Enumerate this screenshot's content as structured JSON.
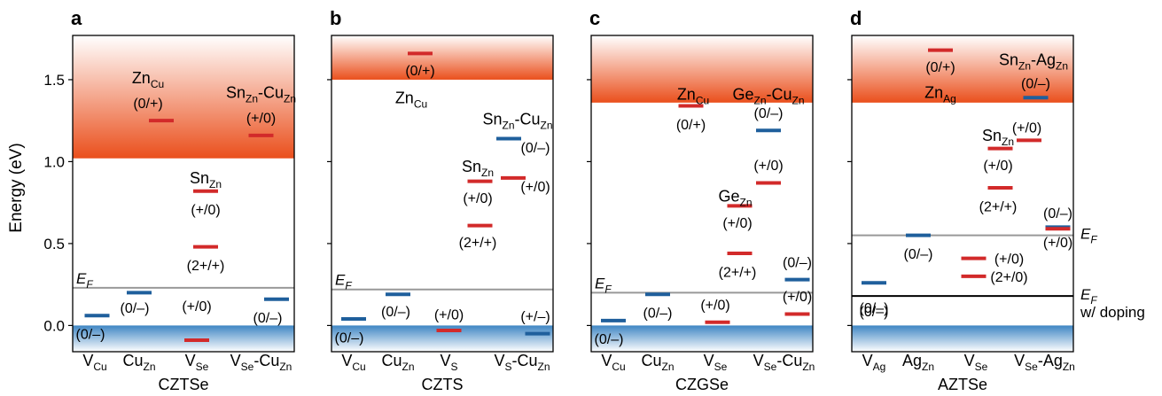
{
  "chart_data": {
    "type": "band-diagram",
    "ylabel": "Energy (eV)",
    "ylim": [
      -0.16,
      1.77
    ],
    "yticks": [
      0.0,
      0.5,
      1.0,
      1.5
    ],
    "ytick_labels": [
      "0.0",
      "0.5",
      "1.0",
      "1.5"
    ],
    "colors": {
      "acceptor": "#1f5f9c",
      "donor": "#d22a2a",
      "fermi": "#999999",
      "doped_fermi": "#000000",
      "cb": "#ec5a25",
      "vb": "#4a8cc6"
    },
    "panels": [
      {
        "letter": "a",
        "material": "CZTSe",
        "cbm": 1.02,
        "x_labels": [
          {
            "base": "V",
            "sub": "Cu",
            "pos": 0.1
          },
          {
            "base": "Cu",
            "sub": "Zn",
            "pos": 0.3
          },
          {
            "base": "V",
            "sub": "Se",
            "pos": 0.56
          },
          {
            "base": "V",
            "sub": "Se",
            "mid": "-Cu",
            "sub2": "Zn",
            "pos": 0.85
          }
        ],
        "fermi_levels": [
          {
            "energy": 0.23,
            "label": "E",
            "sub": "F",
            "style": "gray",
            "label_pos": "left-above"
          }
        ],
        "levels": [
          {
            "energy": 0.06,
            "x": 0.11,
            "type": "acceptor",
            "label": "(0/–)",
            "lx": 0.08,
            "ly": -0.05
          },
          {
            "energy": 0.2,
            "x": 0.3,
            "type": "acceptor",
            "label": "(0/–)",
            "lx": 0.28,
            "ly": 0.11
          },
          {
            "energy": -0.09,
            "x": 0.56,
            "type": "donor",
            "label": "(+/0)",
            "lx": 0.56,
            "ly": 0.12
          },
          {
            "energy": 0.48,
            "x": 0.6,
            "type": "donor",
            "label": "(2+/+)",
            "lx": 0.6,
            "ly": 0.37
          },
          {
            "energy": 0.82,
            "x": 0.6,
            "type": "donor",
            "label": "(+/0)",
            "lx": 0.6,
            "ly": 0.71
          },
          {
            "energy": 1.25,
            "x": 0.4,
            "type": "donor",
            "label": "(0/+)",
            "lx": 0.34,
            "ly": 1.36
          },
          {
            "energy": 1.16,
            "x": 0.85,
            "type": "donor",
            "label": "(+/0)",
            "lx": 0.85,
            "ly": 1.27
          },
          {
            "energy": 0.16,
            "x": 0.92,
            "type": "acceptor",
            "label": "(0/–)",
            "lx": 0.88,
            "ly": 0.05
          }
        ],
        "defects": [
          {
            "base": "Zn",
            "sub": "Cu",
            "x": 0.34,
            "y": 1.51
          },
          {
            "base": "Sn",
            "sub": "Zn",
            "mid": "-Cu",
            "sub2": "Zn",
            "x": 0.85,
            "y": 1.42
          },
          {
            "base": "Sn",
            "sub": "Zn",
            "x": 0.6,
            "y": 0.9
          }
        ]
      },
      {
        "letter": "b",
        "material": "CZTS",
        "cbm": 1.5,
        "x_labels": [
          {
            "base": "V",
            "sub": "Cu",
            "pos": 0.1
          },
          {
            "base": "Cu",
            "sub": "Zn",
            "pos": 0.3
          },
          {
            "base": "V",
            "sub": "S",
            "pos": 0.53
          },
          {
            "base": "V",
            "sub": "S",
            "mid": "-Cu",
            "sub2": "Zn",
            "pos": 0.86
          }
        ],
        "fermi_levels": [
          {
            "energy": 0.22,
            "label": "E",
            "sub": "F",
            "style": "gray",
            "label_pos": "left-above"
          }
        ],
        "levels": [
          {
            "energy": 0.04,
            "x": 0.1,
            "type": "acceptor",
            "label": "(0/–)",
            "lx": 0.08,
            "ly": -0.07
          },
          {
            "energy": 0.19,
            "x": 0.3,
            "type": "acceptor",
            "label": "(0/–)",
            "lx": 0.29,
            "ly": 0.09
          },
          {
            "energy": -0.03,
            "x": 0.53,
            "type": "donor",
            "label": "(+/0)",
            "lx": 0.53,
            "ly": 0.07
          },
          {
            "energy": -0.05,
            "x": 0.93,
            "type": "acceptor",
            "label": "(+/–)",
            "lx": 0.92,
            "ly": 0.06
          },
          {
            "energy": 0.61,
            "x": 0.67,
            "type": "donor",
            "label": "(2+/+)",
            "lx": 0.66,
            "ly": 0.51
          },
          {
            "energy": 0.88,
            "x": 0.67,
            "type": "donor",
            "label": "(+/0)",
            "lx": 0.66,
            "ly": 0.78
          },
          {
            "energy": 0.9,
            "x": 0.82,
            "type": "donor",
            "label": "(+/0)",
            "lx": 0.92,
            "ly": 0.85
          },
          {
            "energy": 1.14,
            "x": 0.8,
            "type": "acceptor",
            "label": "(0/–)",
            "lx": 0.92,
            "ly": 1.09
          },
          {
            "energy": 1.66,
            "x": 0.4,
            "type": "donor",
            "label": "(0/+)",
            "lx": 0.4,
            "ly": 1.56
          }
        ],
        "defects": [
          {
            "base": "Zn",
            "sub": "Cu",
            "x": 0.36,
            "y": 1.39
          },
          {
            "base": "Sn",
            "sub": "Zn",
            "mid": "-Cu",
            "sub2": "Zn",
            "x": 0.84,
            "y": 1.26
          },
          {
            "base": "Sn",
            "sub": "Zn",
            "x": 0.66,
            "y": 0.97
          }
        ]
      },
      {
        "letter": "c",
        "material": "CZGSe",
        "cbm": 1.36,
        "x_labels": [
          {
            "base": "V",
            "sub": "Cu",
            "pos": 0.1
          },
          {
            "base": "Cu",
            "sub": "Zn",
            "pos": 0.3
          },
          {
            "base": "V",
            "sub": "Se",
            "pos": 0.56
          },
          {
            "base": "V",
            "sub": "Se",
            "mid": "-Cu",
            "sub2": "Zn",
            "pos": 0.87
          }
        ],
        "fermi_levels": [
          {
            "energy": 0.2,
            "label": "E",
            "sub": "F",
            "style": "gray",
            "label_pos": "left-above"
          }
        ],
        "levels": [
          {
            "energy": 0.03,
            "x": 0.1,
            "type": "acceptor",
            "label": "(0/–)",
            "lx": 0.08,
            "ly": -0.08
          },
          {
            "energy": 0.19,
            "x": 0.3,
            "type": "acceptor",
            "label": "(0/–)",
            "lx": 0.3,
            "ly": 0.08
          },
          {
            "energy": 0.02,
            "x": 0.57,
            "type": "donor",
            "label": "(+/0)",
            "lx": 0.56,
            "ly": 0.13
          },
          {
            "energy": 0.07,
            "x": 0.93,
            "type": "donor",
            "label": "(+/0)",
            "lx": 0.93,
            "ly": 0.18
          },
          {
            "energy": 0.28,
            "x": 0.93,
            "type": "acceptor",
            "label": "(0/–)",
            "lx": 0.93,
            "ly": 0.39
          },
          {
            "energy": 0.44,
            "x": 0.67,
            "type": "donor",
            "label": "(2+/+)",
            "lx": 0.66,
            "ly": 0.33
          },
          {
            "energy": 0.73,
            "x": 0.67,
            "type": "donor",
            "label": "(+/0)",
            "lx": 0.66,
            "ly": 0.63
          },
          {
            "energy": 0.87,
            "x": 0.8,
            "type": "donor",
            "label": "(+/0)",
            "lx": 0.8,
            "ly": 0.98
          },
          {
            "energy": 1.19,
            "x": 0.8,
            "type": "acceptor",
            "label": "(0/–)",
            "lx": 0.8,
            "ly": 1.3
          },
          {
            "energy": 1.34,
            "x": 0.45,
            "type": "donor",
            "label": "(0/+)",
            "lx": 0.45,
            "ly": 1.23
          }
        ],
        "defects": [
          {
            "base": "Zn",
            "sub": "Cu",
            "x": 0.46,
            "y": 1.41
          },
          {
            "base": "Ge",
            "sub": "Zn",
            "mid": "-Cu",
            "sub2": "Zn",
            "x": 0.8,
            "y": 1.41
          },
          {
            "base": "Ge",
            "sub": "Zn",
            "x": 0.65,
            "y": 0.79
          }
        ]
      },
      {
        "letter": "d",
        "material": "AZTSe",
        "cbm": 1.36,
        "x_labels": [
          {
            "base": "V",
            "sub": "Ag",
            "pos": 0.1
          },
          {
            "base": "Ag",
            "sub": "Zn",
            "pos": 0.3
          },
          {
            "base": "V",
            "sub": "Se",
            "pos": 0.56
          },
          {
            "base": "V",
            "sub": "Se",
            "mid": "-Ag",
            "sub2": "Zn",
            "pos": 0.87
          }
        ],
        "fermi_levels": [
          {
            "energy": 0.55,
            "label": "E",
            "sub": "F",
            "style": "gray",
            "label_pos": "right"
          },
          {
            "energy": 0.18,
            "label": "E",
            "sub": "F",
            "suffix": "w/ doping",
            "style": "black",
            "label_pos": "right"
          }
        ],
        "levels": [
          {
            "energy": 0.26,
            "x": 0.1,
            "type": "acceptor",
            "label": "(0/–)",
            "lx": 0.1,
            "ly": 0.09
          },
          {
            "energy": 0.55,
            "x": 0.3,
            "type": "acceptor",
            "label": "(0/–)",
            "lx": 0.3,
            "ly": 0.44
          },
          {
            "energy": 0.41,
            "x": 0.55,
            "type": "donor",
            "label": "(+/0)",
            "lx": 0.71,
            "ly": 0.41
          },
          {
            "energy": 0.3,
            "x": 0.55,
            "type": "donor",
            "label": "(2+/0)",
            "lx": 0.71,
            "ly": 0.3
          },
          {
            "energy": 0.6,
            "x": 0.93,
            "type": "acceptor",
            "label": "(0/–)",
            "lx": 0.93,
            "ly": 0.69
          },
          {
            "energy": 0.59,
            "x": 0.93,
            "type": "donor",
            "label": "(+/0)",
            "lx": 0.93,
            "ly": 0.51
          },
          {
            "energy": 0.84,
            "x": 0.67,
            "type": "donor",
            "label": "(2+/+)",
            "lx": 0.66,
            "ly": 0.73
          },
          {
            "energy": 1.08,
            "x": 0.67,
            "type": "donor",
            "label": "(+/0)",
            "lx": 0.66,
            "ly": 0.98
          },
          {
            "energy": 1.13,
            "x": 0.8,
            "type": "donor",
            "label": "(+/0)",
            "lx": 0.79,
            "ly": 1.21
          },
          {
            "energy": 1.39,
            "x": 0.83,
            "type": "acceptor",
            "label": "(0/–)",
            "lx": 0.83,
            "ly": 1.48
          },
          {
            "energy": 1.68,
            "x": 0.4,
            "type": "donor",
            "label": "(0/+)",
            "lx": 0.4,
            "ly": 1.58
          }
        ],
        "defects": [
          {
            "base": "Zn",
            "sub": "Ag",
            "x": 0.4,
            "y": 1.42
          },
          {
            "base": "Sn",
            "sub": "Zn",
            "mid": "-Ag",
            "sub2": "Zn",
            "x": 0.82,
            "y": 1.62
          },
          {
            "base": "Sn",
            "sub": "Zn",
            "x": 0.66,
            "y": 1.16
          }
        ],
        "extra_labels": [
          {
            "text": "(0/–)",
            "x": 0.1,
            "y": 0.11
          }
        ]
      }
    ]
  }
}
